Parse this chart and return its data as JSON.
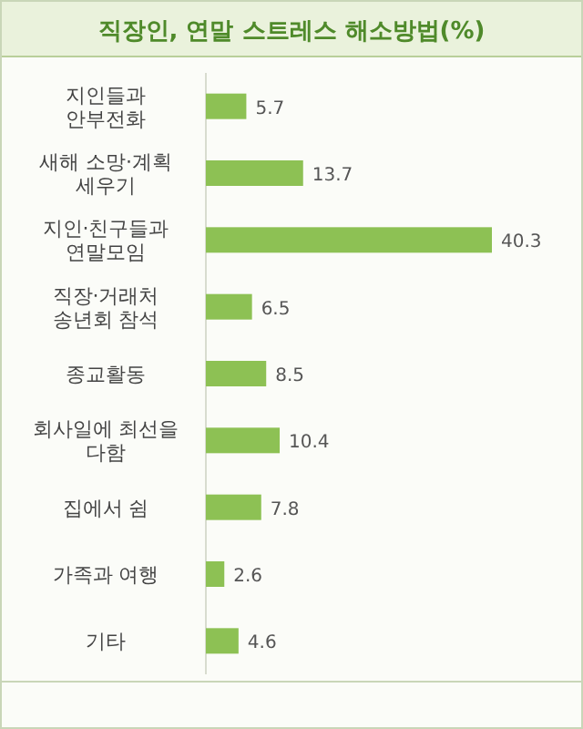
{
  "chart_data": {
    "type": "bar",
    "orientation": "horizontal",
    "title": "직장인, 연말 스트레스 해소방법(%)",
    "categories": [
      "지인들과 안부전화",
      "새해 소망·계획 세우기",
      "지인·친구들과 연말모임",
      "직장·거래처 송년회 참석",
      "종교활동",
      "회사일에 최선을 다함",
      "집에서 쉼",
      "가족과 여행",
      "기타"
    ],
    "values": [
      5.7,
      13.7,
      40.3,
      6.5,
      8.5,
      10.4,
      7.8,
      2.6,
      4.6
    ],
    "color": "#8dc154",
    "data_labels": true
  }
}
